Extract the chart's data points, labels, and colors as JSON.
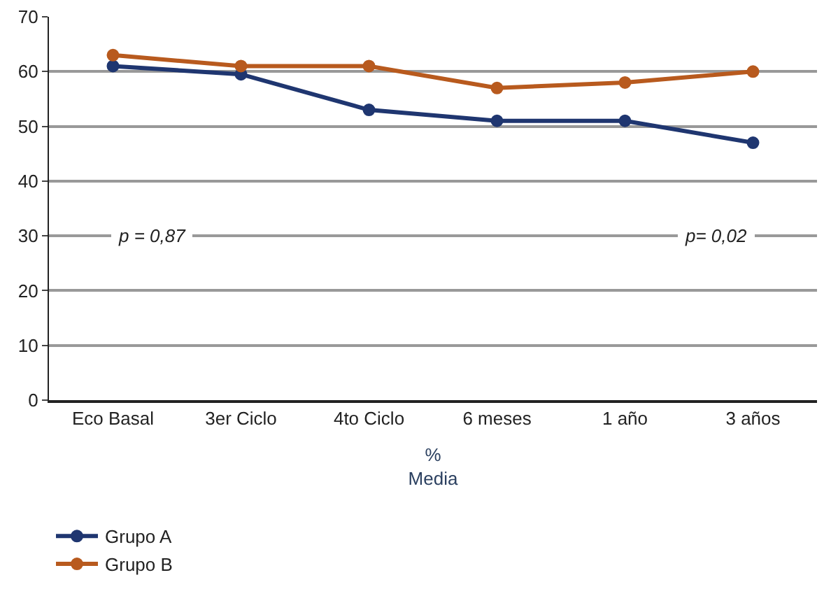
{
  "chart_data": {
    "type": "line",
    "xlabel": "%\nMedia",
    "categories": [
      "Eco Basal",
      "3er Ciclo",
      "4to Ciclo",
      "6 meses",
      "1 año",
      "3 años"
    ],
    "series": [
      {
        "name": "Grupo A",
        "color": "#1f3670",
        "values": [
          61,
          59.5,
          53,
          51,
          51,
          47
        ]
      },
      {
        "name": "Grupo B",
        "color": "#b85a1e",
        "values": [
          63,
          61,
          61,
          57,
          58,
          60
        ]
      }
    ],
    "ylim": [
      0,
      70
    ],
    "yticks": [
      0,
      10,
      20,
      30,
      40,
      50,
      60,
      70
    ],
    "grid": "y",
    "legend": "bottom left",
    "marker": "circle",
    "line_style": "solid",
    "annotations": [
      "p = 0,87",
      "p= 0,02"
    ]
  }
}
